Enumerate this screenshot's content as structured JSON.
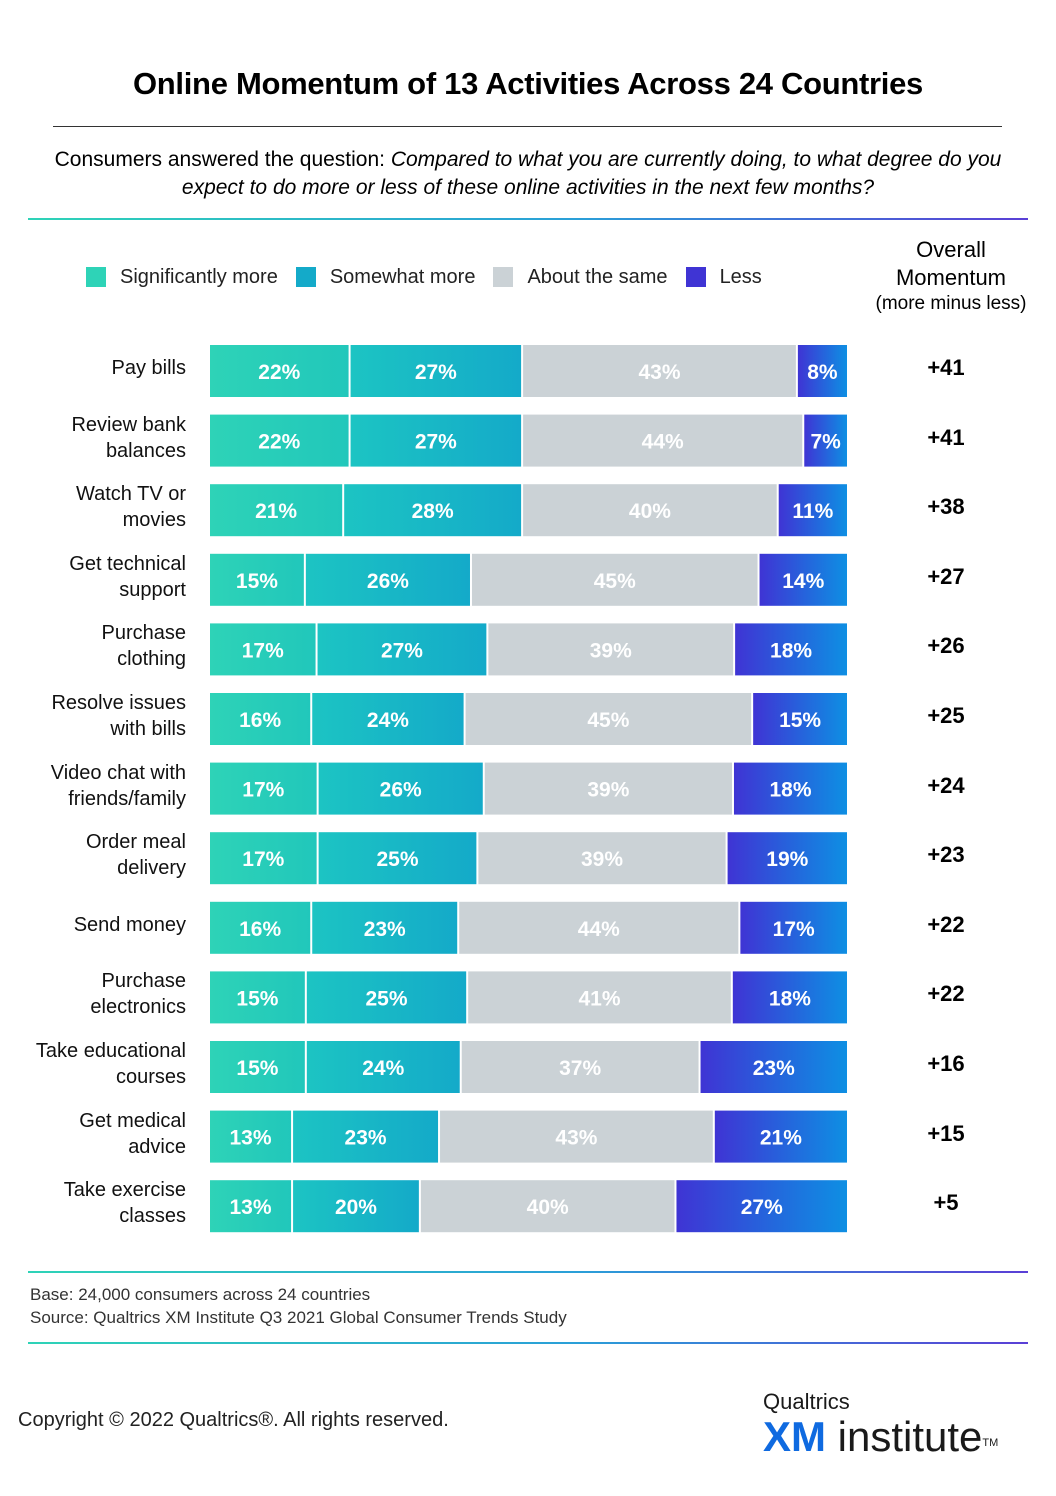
{
  "title": "Online Momentum of 13 Activities Across 24 Countries",
  "question_prefix": "Consumers answered the question: ",
  "question_italic": "Compared to what you are currently doing, to what degree do you expect to do more or less of these online activities in the next few months?",
  "momentum_header": {
    "line1": "Overall",
    "line2": "Momentum",
    "line3": "(more minus less)"
  },
  "footnotes": {
    "base": "Base: 24,000 consumers across 24 countries",
    "source": "Source: Qualtrics XM Institute Q3 2021 Global Consumer Trends Study"
  },
  "copyright": "Copyright © 2022 Qualtrics®.  All rights reserved.",
  "logo": {
    "top": "Qualtrics",
    "xm": "XM",
    "institute": " institute",
    "tm": "TM"
  },
  "colors": {
    "significantly_more": [
      "#2ed3b7",
      "#21c7bb"
    ],
    "somewhat_more": [
      "#1cc4c3",
      "#14aac9"
    ],
    "about_same": "#cbd2d6",
    "less": [
      "#3f34d4",
      "#0e8fe3"
    ]
  },
  "chart_data": {
    "type": "bar",
    "orientation": "horizontal-stacked-100",
    "categories": [
      "Pay bills",
      "Review bank balances",
      "Watch TV or movies",
      "Get technical support",
      "Purchase clothing",
      "Resolve issues with bills",
      "Video chat with friends/family",
      "Order meal delivery",
      "Send money",
      "Purchase electronics",
      "Take educational courses",
      "Get medical advice",
      "Take exercise classes"
    ],
    "category_lines": [
      [
        "Pay bills"
      ],
      [
        "Review bank",
        "balances"
      ],
      [
        "Watch TV or",
        "movies"
      ],
      [
        "Get technical",
        "support"
      ],
      [
        "Purchase",
        "clothing"
      ],
      [
        "Resolve issues",
        "with bills"
      ],
      [
        "Video chat with",
        "friends/family"
      ],
      [
        "Order meal",
        "delivery"
      ],
      [
        "Send money"
      ],
      [
        "Purchase",
        "electronics"
      ],
      [
        "Take educational",
        "courses"
      ],
      [
        "Get medical",
        "advice"
      ],
      [
        "Take exercise",
        "classes"
      ]
    ],
    "series": [
      {
        "name": "Significantly more",
        "values": [
          22,
          22,
          21,
          15,
          17,
          16,
          17,
          17,
          16,
          15,
          15,
          13,
          13
        ]
      },
      {
        "name": "Somewhat more",
        "values": [
          27,
          27,
          28,
          26,
          27,
          24,
          26,
          25,
          23,
          25,
          24,
          23,
          20
        ]
      },
      {
        "name": "About the same",
        "values": [
          43,
          44,
          40,
          45,
          39,
          45,
          39,
          39,
          44,
          41,
          37,
          43,
          40
        ]
      },
      {
        "name": "Less",
        "values": [
          8,
          7,
          11,
          14,
          18,
          15,
          18,
          19,
          17,
          18,
          23,
          21,
          27
        ]
      }
    ],
    "overall_momentum": [
      "+41",
      "+41",
      "+38",
      "+27",
      "+26",
      "+25",
      "+24",
      "+23",
      "+22",
      "+22",
      "+16",
      "+15",
      "+5"
    ],
    "value_suffix": "%",
    "legend_position": "top",
    "grid": false
  }
}
